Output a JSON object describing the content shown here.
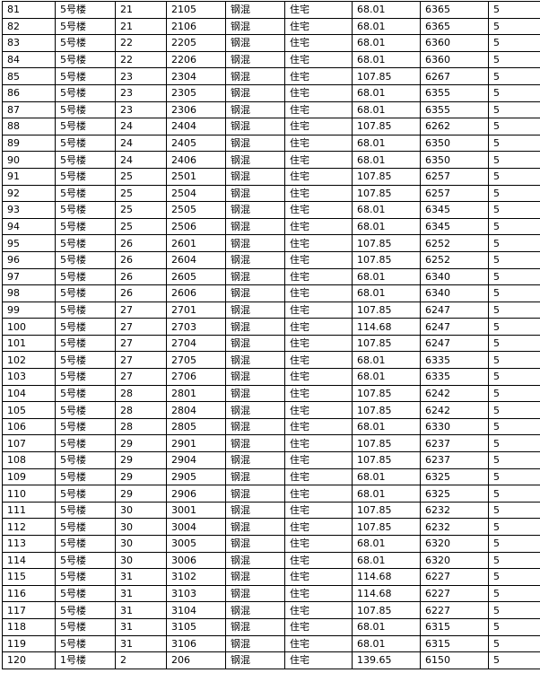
{
  "rows": [
    [
      "81",
      "5号楼",
      "21",
      "2105",
      "钢混",
      "住宅",
      "68.01",
      "6365",
      "5"
    ],
    [
      "82",
      "5号楼",
      "21",
      "2106",
      "钢混",
      "住宅",
      "68.01",
      "6365",
      "5"
    ],
    [
      "83",
      "5号楼",
      "22",
      "2205",
      "钢混",
      "住宅",
      "68.01",
      "6360",
      "5"
    ],
    [
      "84",
      "5号楼",
      "22",
      "2206",
      "钢混",
      "住宅",
      "68.01",
      "6360",
      "5"
    ],
    [
      "85",
      "5号楼",
      "23",
      "2304",
      "钢混",
      "住宅",
      "107.85",
      "6267",
      "5"
    ],
    [
      "86",
      "5号楼",
      "23",
      "2305",
      "钢混",
      "住宅",
      "68.01",
      "6355",
      "5"
    ],
    [
      "87",
      "5号楼",
      "23",
      "2306",
      "钢混",
      "住宅",
      "68.01",
      "6355",
      "5"
    ],
    [
      "88",
      "5号楼",
      "24",
      "2404",
      "钢混",
      "住宅",
      "107.85",
      "6262",
      "5"
    ],
    [
      "89",
      "5号楼",
      "24",
      "2405",
      "钢混",
      "住宅",
      "68.01",
      "6350",
      "5"
    ],
    [
      "90",
      "5号楼",
      "24",
      "2406",
      "钢混",
      "住宅",
      "68.01",
      "6350",
      "5"
    ],
    [
      "91",
      "5号楼",
      "25",
      "2501",
      "钢混",
      "住宅",
      "107.85",
      "6257",
      "5"
    ],
    [
      "92",
      "5号楼",
      "25",
      "2504",
      "钢混",
      "住宅",
      "107.85",
      "6257",
      "5"
    ],
    [
      "93",
      "5号楼",
      "25",
      "2505",
      "钢混",
      "住宅",
      "68.01",
      "6345",
      "5"
    ],
    [
      "94",
      "5号楼",
      "25",
      "2506",
      "钢混",
      "住宅",
      "68.01",
      "6345",
      "5"
    ],
    [
      "95",
      "5号楼",
      "26",
      "2601",
      "钢混",
      "住宅",
      "107.85",
      "6252",
      "5"
    ],
    [
      "96",
      "5号楼",
      "26",
      "2604",
      "钢混",
      "住宅",
      "107.85",
      "6252",
      "5"
    ],
    [
      "97",
      "5号楼",
      "26",
      "2605",
      "钢混",
      "住宅",
      "68.01",
      "6340",
      "5"
    ],
    [
      "98",
      "5号楼",
      "26",
      "2606",
      "钢混",
      "住宅",
      "68.01",
      "6340",
      "5"
    ],
    [
      "99",
      "5号楼",
      "27",
      "2701",
      "钢混",
      "住宅",
      "107.85",
      "6247",
      "5"
    ],
    [
      "100",
      "5号楼",
      "27",
      "2703",
      "钢混",
      "住宅",
      "114.68",
      "6247",
      "5"
    ],
    [
      "101",
      "5号楼",
      "27",
      "2704",
      "钢混",
      "住宅",
      "107.85",
      "6247",
      "5"
    ],
    [
      "102",
      "5号楼",
      "27",
      "2705",
      "钢混",
      "住宅",
      "68.01",
      "6335",
      "5"
    ],
    [
      "103",
      "5号楼",
      "27",
      "2706",
      "钢混",
      "住宅",
      "68.01",
      "6335",
      "5"
    ],
    [
      "104",
      "5号楼",
      "28",
      "2801",
      "钢混",
      "住宅",
      "107.85",
      "6242",
      "5"
    ],
    [
      "105",
      "5号楼",
      "28",
      "2804",
      "钢混",
      "住宅",
      "107.85",
      "6242",
      "5"
    ],
    [
      "106",
      "5号楼",
      "28",
      "2805",
      "钢混",
      "住宅",
      "68.01",
      "6330",
      "5"
    ],
    [
      "107",
      "5号楼",
      "29",
      "2901",
      "钢混",
      "住宅",
      "107.85",
      "6237",
      "5"
    ],
    [
      "108",
      "5号楼",
      "29",
      "2904",
      "钢混",
      "住宅",
      "107.85",
      "6237",
      "5"
    ],
    [
      "109",
      "5号楼",
      "29",
      "2905",
      "钢混",
      "住宅",
      "68.01",
      "6325",
      "5"
    ],
    [
      "110",
      "5号楼",
      "29",
      "2906",
      "钢混",
      "住宅",
      "68.01",
      "6325",
      "5"
    ],
    [
      "111",
      "5号楼",
      "30",
      "3001",
      "钢混",
      "住宅",
      "107.85",
      "6232",
      "5"
    ],
    [
      "112",
      "5号楼",
      "30",
      "3004",
      "钢混",
      "住宅",
      "107.85",
      "6232",
      "5"
    ],
    [
      "113",
      "5号楼",
      "30",
      "3005",
      "钢混",
      "住宅",
      "68.01",
      "6320",
      "5"
    ],
    [
      "114",
      "5号楼",
      "30",
      "3006",
      "钢混",
      "住宅",
      "68.01",
      "6320",
      "5"
    ],
    [
      "115",
      "5号楼",
      "31",
      "3102",
      "钢混",
      "住宅",
      "114.68",
      "6227",
      "5"
    ],
    [
      "116",
      "5号楼",
      "31",
      "3103",
      "钢混",
      "住宅",
      "114.68",
      "6227",
      "5"
    ],
    [
      "117",
      "5号楼",
      "31",
      "3104",
      "钢混",
      "住宅",
      "107.85",
      "6227",
      "5"
    ],
    [
      "118",
      "5号楼",
      "31",
      "3105",
      "钢混",
      "住宅",
      "68.01",
      "6315",
      "5"
    ],
    [
      "119",
      "5号楼",
      "31",
      "3106",
      "钢混",
      "住宅",
      "68.01",
      "6315",
      "5"
    ],
    [
      "120",
      "1号楼",
      "2",
      "206",
      "钢混",
      "住宅",
      "139.65",
      "6150",
      "5"
    ]
  ]
}
